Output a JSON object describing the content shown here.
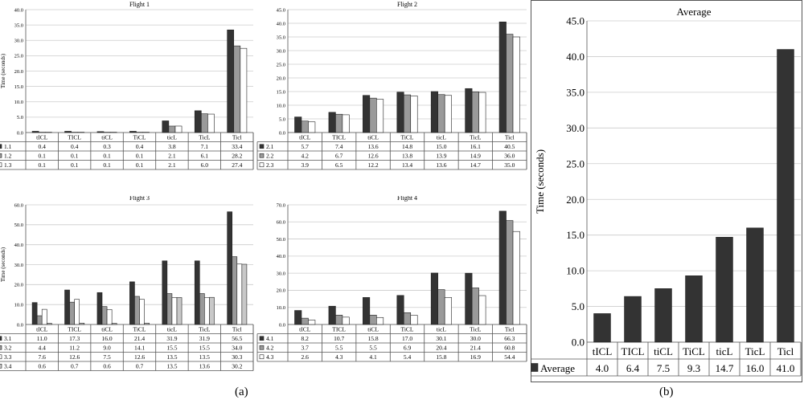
{
  "captions": {
    "left": "(a)",
    "right": "(b)"
  },
  "colors": {
    "dark": "#333333",
    "gray": "#9a9a9a",
    "white": "#ffffff",
    "light": "#c8c8c8",
    "grid": "#cccccc"
  },
  "chart_data": [
    {
      "type": "bar",
      "title": "Flight 1",
      "ylabel": "Time (seconds)",
      "ylim": [
        0,
        40
      ],
      "ytick_step": 5,
      "categories": [
        "tICL",
        "TICL",
        "tiCL",
        "TiCL",
        "ticL",
        "TicL",
        "Ticl"
      ],
      "series": [
        {
          "name": "1.1",
          "swatch": "dark",
          "values": [
            0.4,
            0.4,
            0.3,
            0.4,
            3.8,
            7.1,
            33.4
          ]
        },
        {
          "name": "1.2",
          "swatch": "gray",
          "values": [
            0.1,
            0.1,
            0.1,
            0.1,
            2.1,
            6.1,
            28.2
          ]
        },
        {
          "name": "1.3",
          "swatch": "white",
          "values": [
            0.1,
            0.1,
            0.1,
            0.1,
            2.1,
            6.0,
            27.4
          ]
        }
      ]
    },
    {
      "type": "bar",
      "title": "Flight 2",
      "ylabel": "",
      "ylim": [
        0,
        45
      ],
      "ytick_step": 5,
      "categories": [
        "tICL",
        "TICL",
        "tiCL",
        "TiCL",
        "ticL",
        "TicL",
        "Ticl"
      ],
      "series": [
        {
          "name": "2.1",
          "swatch": "dark",
          "values": [
            5.7,
            7.4,
            13.6,
            14.8,
            15.0,
            16.1,
            40.5
          ]
        },
        {
          "name": "2.2",
          "swatch": "gray",
          "values": [
            4.2,
            6.7,
            12.6,
            13.8,
            13.9,
            14.9,
            36.0
          ]
        },
        {
          "name": "2.3",
          "swatch": "white",
          "values": [
            3.9,
            6.5,
            12.2,
            13.4,
            13.6,
            14.7,
            35.0
          ]
        }
      ]
    },
    {
      "type": "bar",
      "title": "Flight 3",
      "ylabel": "Time (seconds)",
      "ylim": [
        0,
        60
      ],
      "ytick_step": 10,
      "categories": [
        "tICL",
        "TICL",
        "tiCL",
        "TiCL",
        "ticL",
        "TicL",
        "Ticl"
      ],
      "series": [
        {
          "name": "3.1",
          "swatch": "dark",
          "values": [
            11.0,
            17.3,
            16.0,
            21.4,
            31.9,
            31.9,
            56.5
          ]
        },
        {
          "name": "3.2",
          "swatch": "gray",
          "values": [
            4.4,
            11.2,
            9.0,
            14.1,
            15.5,
            15.5,
            34.0
          ]
        },
        {
          "name": "3.3",
          "swatch": "white",
          "values": [
            7.6,
            12.6,
            7.5,
            12.6,
            13.5,
            13.5,
            30.3
          ]
        },
        {
          "name": "3.4",
          "swatch": "light",
          "values": [
            0.6,
            0.7,
            0.6,
            0.7,
            13.5,
            13.6,
            30.2
          ]
        }
      ]
    },
    {
      "type": "bar",
      "title": "Flight 4",
      "ylabel": "",
      "ylim": [
        0,
        70
      ],
      "ytick_step": 10,
      "categories": [
        "tICL",
        "TICL",
        "tiCL",
        "TiCL",
        "ticL",
        "TicL",
        "Ticl"
      ],
      "series": [
        {
          "name": "4.1",
          "swatch": "dark",
          "values": [
            8.2,
            10.7,
            15.8,
            17.0,
            30.1,
            30.0,
            66.3
          ]
        },
        {
          "name": "4.2",
          "swatch": "gray",
          "values": [
            3.7,
            5.5,
            5.5,
            6.9,
            20.4,
            21.4,
            60.8
          ]
        },
        {
          "name": "4.3",
          "swatch": "white",
          "values": [
            2.6,
            4.3,
            4.1,
            5.4,
            15.8,
            16.9,
            54.4
          ]
        }
      ]
    },
    {
      "type": "bar",
      "title": "Average",
      "ylabel": "Time (seconds)",
      "ylim": [
        0,
        45
      ],
      "ytick_step": 5,
      "categories": [
        "tICL",
        "TICL",
        "tiCL",
        "TiCL",
        "ticL",
        "TicL",
        "Ticl"
      ],
      "series": [
        {
          "name": "Average",
          "swatch": "dark",
          "values": [
            4.0,
            6.4,
            7.5,
            9.3,
            14.7,
            16.0,
            41.0
          ]
        }
      ]
    }
  ]
}
